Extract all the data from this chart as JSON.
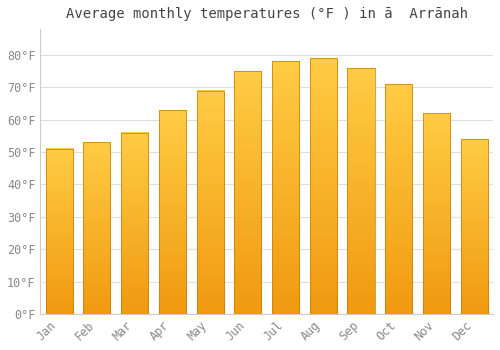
{
  "title": "Average monthly temperatures (°F ) in ā  Arrānah",
  "months": [
    "Jan",
    "Feb",
    "Mar",
    "Apr",
    "May",
    "Jun",
    "Jul",
    "Aug",
    "Sep",
    "Oct",
    "Nov",
    "Dec"
  ],
  "values": [
    51,
    53,
    56,
    63,
    69,
    75,
    78,
    79,
    76,
    71,
    62,
    54
  ],
  "bar_color_left": "#F0A020",
  "bar_color_right": "#FFD050",
  "bar_edge_color": "#C87800",
  "background_color": "#ffffff",
  "grid_color": "#dddddd",
  "tick_label_color": "#888888",
  "title_color": "#444444",
  "ylim": [
    0,
    88
  ],
  "yticks": [
    0,
    10,
    20,
    30,
    40,
    50,
    60,
    70,
    80
  ],
  "ytick_labels": [
    "0°F",
    "10°F",
    "20°F",
    "30°F",
    "40°F",
    "50°F",
    "60°F",
    "70°F",
    "80°F"
  ],
  "title_fontsize": 10,
  "tick_fontsize": 8.5
}
